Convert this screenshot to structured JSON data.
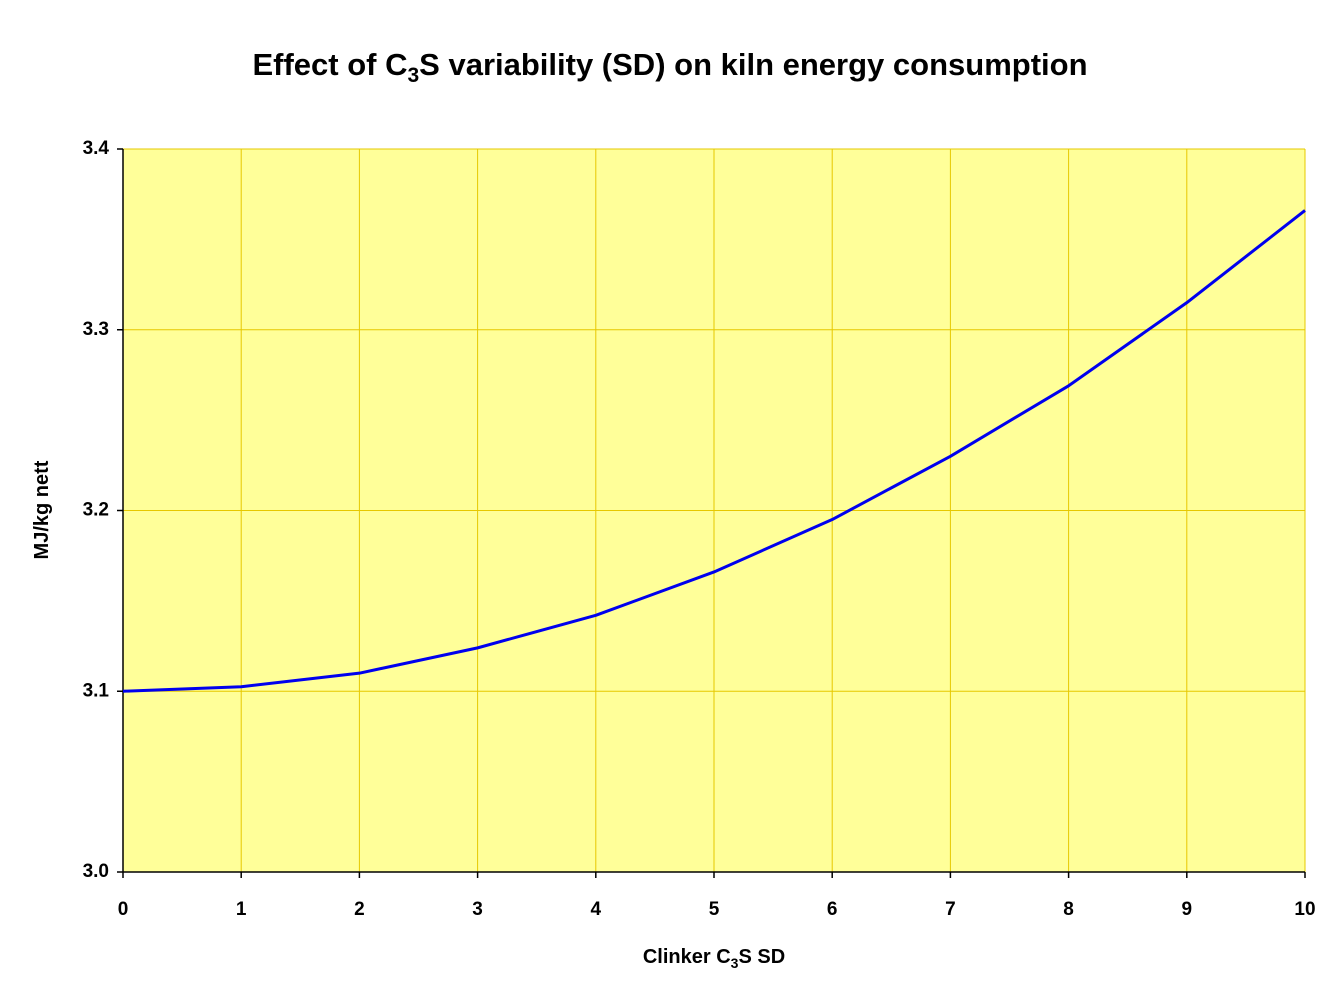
{
  "chart_data": {
    "type": "line",
    "title": [
      "Effect of C",
      "3",
      "S variability (SD) on kiln energy consumption"
    ],
    "xlabel": [
      "Clinker C",
      "3",
      "S SD"
    ],
    "ylabel": "MJ/kg nett",
    "x": [
      0,
      1,
      2,
      3,
      4,
      5,
      6,
      7,
      8,
      9,
      10
    ],
    "series": [
      {
        "color": "#0000ee",
        "values": [
          3.1,
          3.1025,
          3.11,
          3.124,
          3.142,
          3.166,
          3.195,
          3.23,
          3.269,
          3.315,
          3.366
        ]
      }
    ],
    "xlim": [
      0,
      10
    ],
    "xticks": [
      0,
      1,
      2,
      3,
      4,
      5,
      6,
      7,
      8,
      9,
      10
    ],
    "ylim": [
      3,
      3.4
    ],
    "yticks": [
      {
        "value": 3,
        "label": "3.0"
      },
      3.1,
      3.2,
      3.3,
      3.4
    ],
    "grid": true,
    "background": "#ffff99",
    "grid_color": "#e6c800"
  }
}
